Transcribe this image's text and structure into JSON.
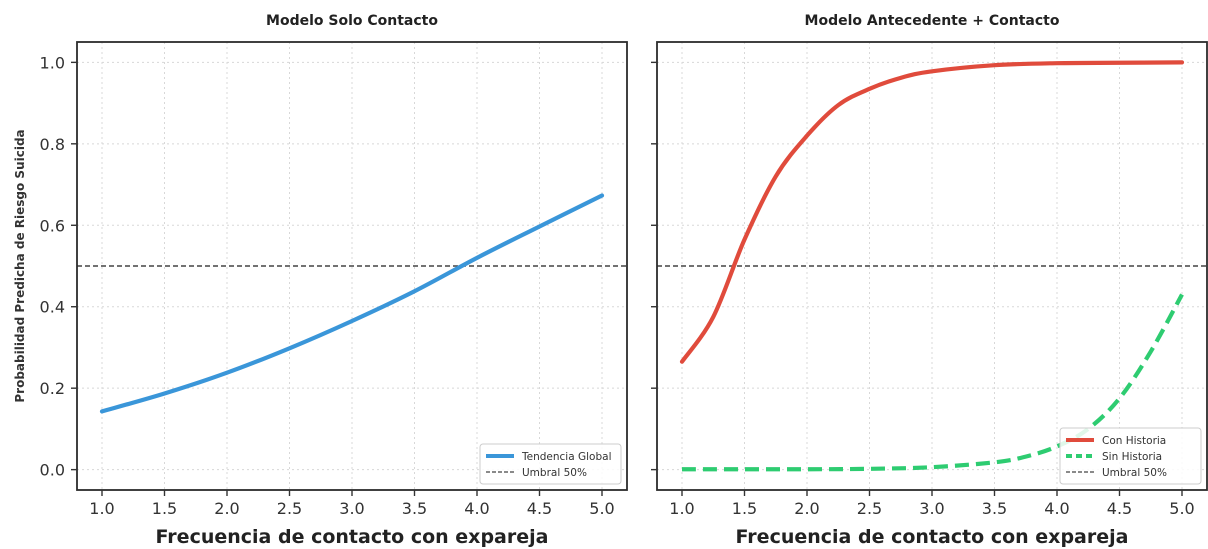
{
  "chart_data": [
    {
      "type": "line",
      "title": "Modelo Solo Contacto",
      "xlabel": "Frecuencia de contacto con expareja",
      "ylabel": "Probabilidad Predicha de Riesgo Suicida",
      "xlim": [
        0.8,
        5.2
      ],
      "ylim": [
        -0.05,
        1.05
      ],
      "xticks": [
        "1.0",
        "1.5",
        "2.0",
        "2.5",
        "3.0",
        "3.5",
        "4.0",
        "4.5",
        "5.0"
      ],
      "yticks": [
        "0.0",
        "0.2",
        "0.4",
        "0.6",
        "0.8",
        "1.0"
      ],
      "grid": true,
      "legend_position": "lower-right",
      "series": [
        {
          "name": "Tendencia Global",
          "color": "#3a96d9",
          "style": "solid",
          "x": [
            1.0,
            1.5,
            2.0,
            2.5,
            3.0,
            3.5,
            4.0,
            4.5,
            5.0
          ],
          "y": [
            0.143,
            0.187,
            0.238,
            0.298,
            0.365,
            0.438,
            0.52,
            0.597,
            0.673
          ]
        }
      ],
      "threshold": {
        "name": "Umbral 50%",
        "value": 0.5,
        "color": "#444444",
        "style": "dashed"
      }
    },
    {
      "type": "line",
      "title": "Modelo Antecedente + Contacto",
      "xlabel": "Frecuencia de contacto con expareja",
      "ylabel": "",
      "xlim": [
        0.8,
        5.2
      ],
      "ylim": [
        -0.05,
        1.05
      ],
      "xticks": [
        "1.0",
        "1.5",
        "2.0",
        "2.5",
        "3.0",
        "3.5",
        "4.0",
        "4.5",
        "5.0"
      ],
      "yticks": [
        "0.0",
        "0.2",
        "0.4",
        "0.6",
        "0.8",
        "1.0"
      ],
      "grid": true,
      "legend_position": "lower-right",
      "series": [
        {
          "name": "Con Historia",
          "color": "#e04b3c",
          "style": "solid",
          "x": [
            1.0,
            1.25,
            1.5,
            1.75,
            2.0,
            2.25,
            2.5,
            2.75,
            3.0,
            3.5,
            4.0,
            4.5,
            5.0
          ],
          "y": [
            0.265,
            0.375,
            0.565,
            0.72,
            0.82,
            0.895,
            0.935,
            0.962,
            0.978,
            0.993,
            0.998,
            0.999,
            1.0
          ]
        },
        {
          "name": "Sin Historia",
          "color": "#2ecc71",
          "style": "dashed",
          "x": [
            1.0,
            1.5,
            2.0,
            2.5,
            3.0,
            3.5,
            3.75,
            4.0,
            4.25,
            4.5,
            4.75,
            5.0
          ],
          "y": [
            0.001,
            0.001,
            0.001,
            0.002,
            0.006,
            0.018,
            0.032,
            0.057,
            0.1,
            0.175,
            0.29,
            0.43
          ]
        }
      ],
      "threshold": {
        "name": "Umbral 50%",
        "value": 0.5,
        "color": "#444444",
        "style": "dashed"
      }
    }
  ]
}
